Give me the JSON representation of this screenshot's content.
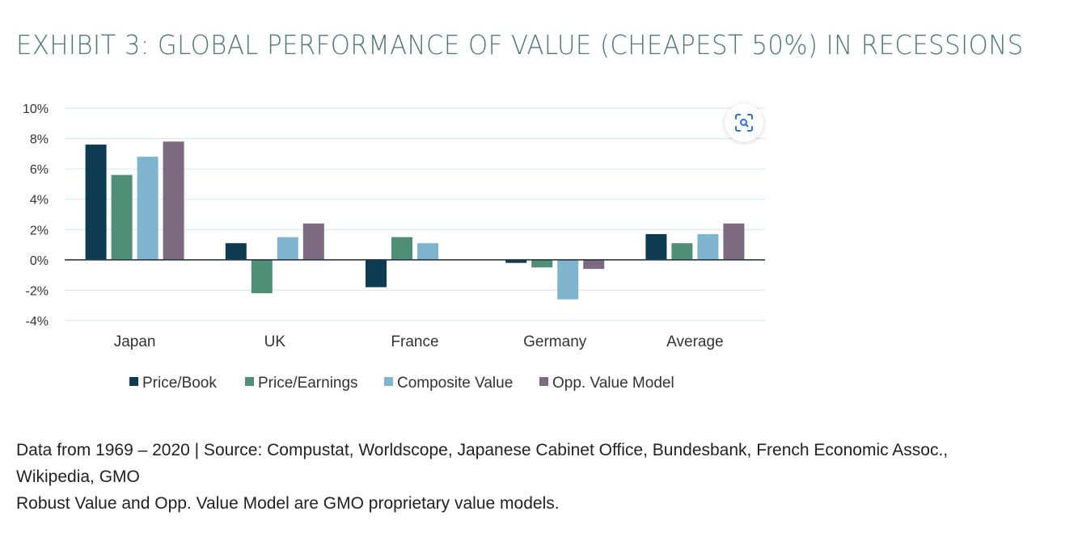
{
  "title": "EXHIBIT 3: GLOBAL PERFORMANCE OF VALUE (CHEAPEST 50%) IN RECESSIONS",
  "icons": {
    "zoom": "scan-search-icon"
  },
  "colors": {
    "title": "#4f7a72",
    "series": [
      "#0d3b52",
      "#4f8f77",
      "#7fb4cf",
      "#7b6a80"
    ],
    "grid": "#d6e4ec",
    "axis": "#2a3a44"
  },
  "chart_data": {
    "type": "bar",
    "categories": [
      "Japan",
      "UK",
      "France",
      "Germany",
      "Average"
    ],
    "series": [
      {
        "name": "Price/Book",
        "values": [
          7.6,
          1.1,
          -1.8,
          -0.2,
          1.7
        ]
      },
      {
        "name": "Price/Earnings",
        "values": [
          5.6,
          -2.2,
          1.5,
          -0.5,
          1.1
        ]
      },
      {
        "name": "Composite Value",
        "values": [
          6.8,
          1.5,
          1.1,
          -2.6,
          1.7
        ]
      },
      {
        "name": "Opp. Value Model",
        "values": [
          7.8,
          2.4,
          0.0,
          -0.6,
          2.4
        ]
      }
    ],
    "ylim": [
      -4,
      10
    ],
    "yticks": [
      10,
      8,
      6,
      4,
      2,
      0,
      -2,
      -4
    ],
    "ytick_labels": [
      "10%",
      "8%",
      "6%",
      "4%",
      "2%",
      "0%",
      "-2%",
      "-4%"
    ],
    "grid": true,
    "legend_position": "bottom"
  },
  "footer": {
    "line1": "Data from 1969 – 2020 | Source: Compustat, Worldscope, Japanese Cabinet Office, Bundesbank, French Economic Assoc.,",
    "line2": "Wikipedia, GMO",
    "line3": "Robust Value and Opp. Value Model are GMO proprietary value models."
  }
}
